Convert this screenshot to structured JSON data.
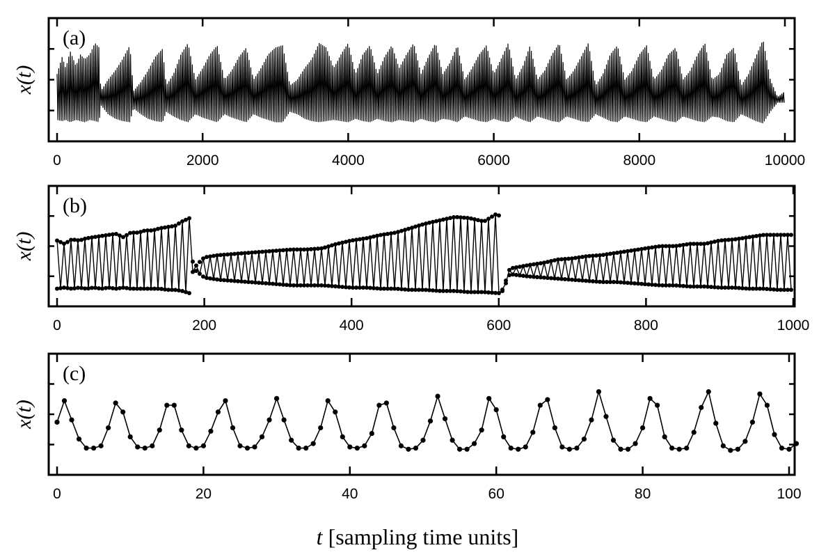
{
  "chart_data": [
    {
      "type": "line",
      "panel_label": "(a)",
      "ylabel": "x(t)",
      "xlim": [
        0,
        10000
      ],
      "ylim": [
        0,
        1
      ],
      "xticks": [
        0,
        2000,
        4000,
        6000,
        8000,
        10000
      ],
      "xtick_labels": [
        "0",
        "2000",
        "4000",
        "6000",
        "8000",
        "10000"
      ],
      "y_tick_labels_shown": false,
      "markers": false,
      "series": [
        {
          "x": [
            0,
            70,
            120,
            180,
            260,
            320,
            380,
            450,
            520,
            580,
            600,
            700,
            800,
            900,
            1000,
            1050,
            1150,
            1250,
            1350,
            1450,
            1500,
            1600,
            1700,
            1800,
            1900,
            2000,
            2100,
            2200,
            2300,
            2400,
            2500,
            2600,
            2700,
            2800,
            2900,
            3000,
            3100,
            3200,
            3300,
            3400,
            3500,
            3600,
            3700,
            3800,
            3900,
            4000,
            4100,
            4200,
            4300,
            4400,
            4500,
            4600,
            4700,
            4800,
            4900,
            5000,
            5100,
            5200,
            5300,
            5400,
            5500,
            5600,
            5700,
            5800,
            5900,
            6000,
            6100,
            6200,
            6300,
            6400,
            6500,
            6600,
            6700,
            6800,
            6900,
            7000,
            7100,
            7200,
            7300,
            7400,
            7500,
            7600,
            7700,
            7800,
            7900,
            8000,
            8100,
            8200,
            8300,
            8400,
            8500,
            8600,
            8700,
            8800,
            8900,
            9000,
            9100,
            9200,
            9300,
            9400,
            9500,
            9600,
            9700,
            9800,
            9900,
            10000
          ],
          "y_max": [
            0.55,
            0.7,
            0.6,
            0.75,
            0.62,
            0.72,
            0.68,
            0.72,
            0.82,
            0.78,
            0.4,
            0.5,
            0.58,
            0.68,
            0.8,
            0.4,
            0.48,
            0.58,
            0.7,
            0.77,
            0.45,
            0.55,
            0.72,
            0.82,
            0.5,
            0.6,
            0.72,
            0.8,
            0.5,
            0.58,
            0.7,
            0.78,
            0.5,
            0.6,
            0.72,
            0.78,
            0.8,
            0.45,
            0.5,
            0.6,
            0.68,
            0.82,
            0.78,
            0.6,
            0.72,
            0.82,
            0.55,
            0.72,
            0.8,
            0.55,
            0.7,
            0.8,
            0.6,
            0.72,
            0.82,
            0.55,
            0.7,
            0.82,
            0.55,
            0.65,
            0.8,
            0.5,
            0.6,
            0.72,
            0.8,
            0.55,
            0.68,
            0.82,
            0.5,
            0.62,
            0.8,
            0.5,
            0.58,
            0.72,
            0.82,
            0.5,
            0.58,
            0.7,
            0.82,
            0.45,
            0.55,
            0.72,
            0.8,
            0.5,
            0.58,
            0.72,
            0.8,
            0.5,
            0.58,
            0.72,
            0.78,
            0.5,
            0.58,
            0.72,
            0.82,
            0.5,
            0.55,
            0.72,
            0.78,
            0.45,
            0.55,
            0.7,
            0.85,
            0.5,
            0.35,
            0.4
          ],
          "y_min": [
            0.15,
            0.14,
            0.15,
            0.13,
            0.15,
            0.14,
            0.13,
            0.15,
            0.14,
            0.13,
            0.28,
            0.2,
            0.16,
            0.14,
            0.13,
            0.25,
            0.2,
            0.16,
            0.14,
            0.13,
            0.22,
            0.18,
            0.15,
            0.13,
            0.2,
            0.17,
            0.15,
            0.13,
            0.2,
            0.17,
            0.15,
            0.13,
            0.2,
            0.17,
            0.15,
            0.13,
            0.13,
            0.22,
            0.2,
            0.16,
            0.14,
            0.13,
            0.14,
            0.15,
            0.14,
            0.13,
            0.16,
            0.14,
            0.13,
            0.16,
            0.14,
            0.13,
            0.15,
            0.14,
            0.13,
            0.16,
            0.14,
            0.13,
            0.16,
            0.15,
            0.13,
            0.18,
            0.16,
            0.14,
            0.13,
            0.16,
            0.14,
            0.13,
            0.18,
            0.15,
            0.13,
            0.18,
            0.16,
            0.14,
            0.13,
            0.18,
            0.16,
            0.14,
            0.13,
            0.2,
            0.17,
            0.14,
            0.13,
            0.18,
            0.16,
            0.14,
            0.13,
            0.18,
            0.16,
            0.14,
            0.13,
            0.18,
            0.16,
            0.14,
            0.13,
            0.18,
            0.17,
            0.14,
            0.13,
            0.2,
            0.17,
            0.14,
            0.12,
            0.22,
            0.3,
            0.3
          ]
        }
      ]
    },
    {
      "type": "line",
      "panel_label": "(b)",
      "ylabel": "x(t)",
      "xlim": [
        0,
        1000
      ],
      "ylim": [
        0,
        1
      ],
      "xticks": [
        0,
        200,
        400,
        600,
        800,
        1000
      ],
      "xtick_labels": [
        "0",
        "200",
        "400",
        "600",
        "800",
        "1000"
      ],
      "y_tick_labels_shown": false,
      "markers": true,
      "series": [
        {
          "x": [
            0,
            10,
            20,
            30,
            40,
            50,
            60,
            70,
            80,
            90,
            100,
            110,
            120,
            130,
            140,
            150,
            160,
            170,
            180,
            185,
            200,
            220,
            240,
            260,
            280,
            300,
            320,
            340,
            360,
            380,
            400,
            420,
            440,
            460,
            480,
            500,
            520,
            540,
            560,
            580,
            600,
            605,
            615,
            640,
            660,
            680,
            700,
            720,
            740,
            760,
            780,
            800,
            820,
            840,
            860,
            880,
            900,
            920,
            940,
            960,
            980,
            1000
          ],
          "y_max": [
            0.55,
            0.52,
            0.56,
            0.55,
            0.57,
            0.58,
            0.59,
            0.6,
            0.61,
            0.58,
            0.62,
            0.62,
            0.64,
            0.64,
            0.66,
            0.67,
            0.68,
            0.72,
            0.75,
            0.3,
            0.4,
            0.42,
            0.43,
            0.44,
            0.45,
            0.46,
            0.47,
            0.47,
            0.48,
            0.52,
            0.55,
            0.57,
            0.6,
            0.62,
            0.66,
            0.7,
            0.73,
            0.76,
            0.75,
            0.72,
            0.8,
            0.1,
            0.3,
            0.33,
            0.35,
            0.38,
            0.39,
            0.41,
            0.42,
            0.44,
            0.46,
            0.48,
            0.5,
            0.5,
            0.52,
            0.52,
            0.55,
            0.56,
            0.58,
            0.6,
            0.6,
            0.6
          ],
          "y_min": [
            0.12,
            0.13,
            0.12,
            0.13,
            0.12,
            0.13,
            0.12,
            0.13,
            0.12,
            0.13,
            0.12,
            0.12,
            0.12,
            0.12,
            0.12,
            0.11,
            0.11,
            0.1,
            0.08,
            0.3,
            0.22,
            0.2,
            0.19,
            0.18,
            0.17,
            0.16,
            0.15,
            0.15,
            0.15,
            0.14,
            0.13,
            0.13,
            0.12,
            0.12,
            0.11,
            0.11,
            0.1,
            0.1,
            0.09,
            0.09,
            0.08,
            0.1,
            0.25,
            0.23,
            0.22,
            0.21,
            0.2,
            0.19,
            0.18,
            0.18,
            0.17,
            0.16,
            0.15,
            0.15,
            0.14,
            0.14,
            0.13,
            0.13,
            0.12,
            0.12,
            0.11,
            0.11
          ]
        }
      ]
    },
    {
      "type": "line",
      "panel_label": "(c)",
      "ylabel": "x(t)",
      "xlim": [
        0,
        100
      ],
      "ylim": [
        0,
        1
      ],
      "xticks": [
        0,
        20,
        40,
        60,
        80,
        100
      ],
      "xtick_labels": [
        "0",
        "20",
        "40",
        "60",
        "80",
        "100"
      ],
      "y_tick_labels_shown": false,
      "markers": true,
      "series": [
        {
          "x": [
            0,
            1,
            2,
            3,
            4,
            5,
            6,
            7,
            8,
            9,
            10,
            11,
            12,
            13,
            14,
            15,
            16,
            17,
            18,
            19,
            20,
            21,
            22,
            23,
            24,
            25,
            26,
            27,
            28,
            29,
            30,
            31,
            32,
            33,
            34,
            35,
            36,
            37,
            38,
            39,
            40,
            41,
            42,
            43,
            44,
            45,
            46,
            47,
            48,
            49,
            50,
            51,
            52,
            53,
            54,
            55,
            56,
            57,
            58,
            59,
            60,
            61,
            62,
            63,
            64,
            65,
            66,
            67,
            68,
            69,
            70,
            71,
            72,
            73,
            74,
            75,
            76,
            77,
            78,
            79,
            80,
            81,
            82,
            83,
            84,
            85,
            86,
            87,
            88,
            89,
            90,
            91,
            92,
            93,
            94,
            95,
            96,
            97,
            98,
            99,
            100,
            101
          ],
          "y": [
            0.43,
            0.62,
            0.45,
            0.28,
            0.2,
            0.2,
            0.22,
            0.38,
            0.6,
            0.52,
            0.3,
            0.21,
            0.2,
            0.22,
            0.36,
            0.58,
            0.58,
            0.36,
            0.22,
            0.2,
            0.22,
            0.35,
            0.52,
            0.62,
            0.38,
            0.22,
            0.2,
            0.21,
            0.3,
            0.45,
            0.64,
            0.45,
            0.27,
            0.2,
            0.2,
            0.24,
            0.38,
            0.62,
            0.52,
            0.3,
            0.21,
            0.2,
            0.22,
            0.33,
            0.58,
            0.6,
            0.38,
            0.22,
            0.19,
            0.2,
            0.27,
            0.44,
            0.66,
            0.46,
            0.27,
            0.19,
            0.19,
            0.24,
            0.36,
            0.64,
            0.54,
            0.3,
            0.2,
            0.19,
            0.21,
            0.34,
            0.58,
            0.63,
            0.38,
            0.21,
            0.19,
            0.2,
            0.28,
            0.45,
            0.7,
            0.48,
            0.27,
            0.19,
            0.19,
            0.24,
            0.38,
            0.64,
            0.58,
            0.3,
            0.2,
            0.19,
            0.2,
            0.34,
            0.56,
            0.7,
            0.42,
            0.22,
            0.18,
            0.19,
            0.26,
            0.43,
            0.68,
            0.58,
            0.32,
            0.2,
            0.19,
            0.24
          ]
        }
      ]
    }
  ],
  "xlabel_var": "t",
  "xlabel_rest": " [sampling time units]"
}
